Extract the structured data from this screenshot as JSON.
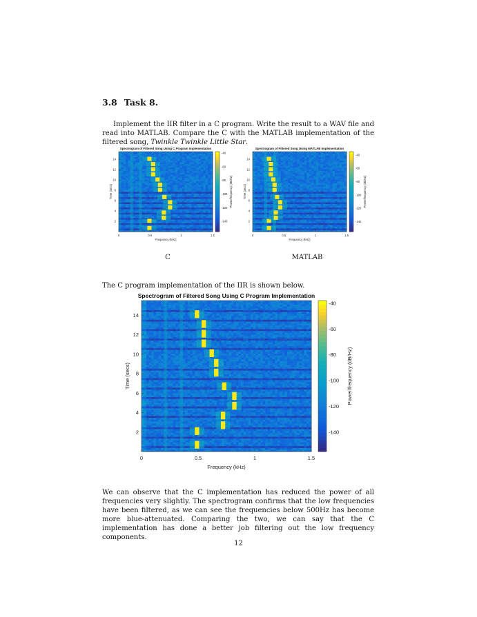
{
  "section": {
    "number": "3.8",
    "title": "Task 8."
  },
  "intro": {
    "text": "Implement the IIR filter in a C program. Write the result to a WAV file and read into MATLAB. Compare the C with the MATLAB implementation of the filtered song, ",
    "song": "Twinkle Twinkle Little Star",
    "end": "."
  },
  "captions": {
    "left": "C",
    "right": "MATLAB"
  },
  "mid_text": "The C program implementation of the IIR is shown below.",
  "conclusion": "We can observe that the C implementation has reduced the power of all frequencies very slightly. The spectrogram confirms that the low frequencies have been filtered, as we can see the frequencies below 500Hz has become more blue-attenuated. Comparing the two, we can say that the C implementation has done a better job filtering out the low frequency components.",
  "page_number": "12",
  "chart_data": [
    {
      "type": "heatmap",
      "id": "small_c",
      "title": "Spectrogram of Filtered Song Using C Program Implementation",
      "xlabel": "Frequency (kHz)",
      "ylabel": "Time (secs)",
      "colorbar_label": "Power/frequency (dB/Hz)",
      "xlim": [
        0,
        1.5
      ],
      "ylim": [
        0,
        15.5
      ],
      "xticks": [
        "0",
        "0.5",
        "1",
        "1.5"
      ],
      "yticks": [
        "2",
        "4",
        "6",
        "8",
        "10",
        "12",
        "14"
      ],
      "clim": [
        -155,
        -38
      ],
      "cticks": [
        "-40",
        "-60",
        "-80",
        "-100",
        "-120",
        "-140"
      ],
      "notes": [
        {
          "t": 0.3,
          "f": 0.49
        },
        {
          "t": 1.7,
          "f": 0.49
        },
        {
          "t": 2.3,
          "f": 0.72
        },
        {
          "t": 3.3,
          "f": 0.72
        },
        {
          "t": 4.3,
          "f": 0.82
        },
        {
          "t": 5.3,
          "f": 0.82
        },
        {
          "t": 6.3,
          "f": 0.73
        },
        {
          "t": 7.7,
          "f": 0.66
        },
        {
          "t": 8.7,
          "f": 0.66
        },
        {
          "t": 9.7,
          "f": 0.62
        },
        {
          "t": 10.7,
          "f": 0.55
        },
        {
          "t": 11.7,
          "f": 0.55
        },
        {
          "t": 12.7,
          "f": 0.55
        },
        {
          "t": 13.7,
          "f": 0.49
        }
      ]
    },
    {
      "type": "heatmap",
      "id": "small_matlab",
      "title": "Spectrogram of Filtered Song Using MATLAB Implementation",
      "xlabel": "Frequency (kHz)",
      "ylabel": "Time (secs)",
      "colorbar_label": "Power/frequency (dB/Hz)",
      "xlim": [
        0,
        1.5
      ],
      "ylim": [
        0,
        15.5
      ],
      "xticks": [
        "0",
        "0.5",
        "1",
        "1.5"
      ],
      "yticks": [
        "2",
        "4",
        "6",
        "8",
        "10",
        "12",
        "14"
      ],
      "clim": [
        -155,
        -35
      ],
      "cticks": [
        "-40",
        "-60",
        "-80",
        "-100",
        "-120",
        "-140"
      ],
      "notes": [
        {
          "t": 0.3,
          "f": 0.26
        },
        {
          "t": 1.7,
          "f": 0.26
        },
        {
          "t": 2.3,
          "f": 0.37
        },
        {
          "t": 3.3,
          "f": 0.37
        },
        {
          "t": 4.3,
          "f": 0.44
        },
        {
          "t": 5.3,
          "f": 0.44
        },
        {
          "t": 6.3,
          "f": 0.39
        },
        {
          "t": 7.7,
          "f": 0.35
        },
        {
          "t": 8.7,
          "f": 0.35
        },
        {
          "t": 9.7,
          "f": 0.33
        },
        {
          "t": 10.7,
          "f": 0.29
        },
        {
          "t": 11.7,
          "f": 0.29
        },
        {
          "t": 12.7,
          "f": 0.29
        },
        {
          "t": 13.7,
          "f": 0.26
        }
      ]
    },
    {
      "type": "heatmap",
      "id": "large_c",
      "title": "Spectrogram of Filtered Song Using C Program Implementation",
      "xlabel": "Frequency (kHz)",
      "ylabel": "Time (secs)",
      "colorbar_label": "Power/frequency (dB/Hz)",
      "xlim": [
        0,
        1.5
      ],
      "ylim": [
        0,
        15.5
      ],
      "xticks": [
        "0",
        "0.5",
        "1",
        "1.5"
      ],
      "yticks": [
        "2",
        "4",
        "6",
        "8",
        "10",
        "12",
        "14"
      ],
      "clim": [
        -155,
        -38
      ],
      "cticks": [
        "-40",
        "-60",
        "-80",
        "-100",
        "-120",
        "-140"
      ],
      "notes": [
        {
          "t": 0.3,
          "f": 0.49
        },
        {
          "t": 1.7,
          "f": 0.49
        },
        {
          "t": 2.3,
          "f": 0.72
        },
        {
          "t": 3.3,
          "f": 0.72
        },
        {
          "t": 4.3,
          "f": 0.82
        },
        {
          "t": 5.3,
          "f": 0.82
        },
        {
          "t": 6.3,
          "f": 0.73
        },
        {
          "t": 7.7,
          "f": 0.66
        },
        {
          "t": 8.7,
          "f": 0.66
        },
        {
          "t": 9.7,
          "f": 0.62
        },
        {
          "t": 10.7,
          "f": 0.55
        },
        {
          "t": 11.7,
          "f": 0.55
        },
        {
          "t": 12.7,
          "f": 0.55
        },
        {
          "t": 13.7,
          "f": 0.49
        }
      ]
    }
  ]
}
